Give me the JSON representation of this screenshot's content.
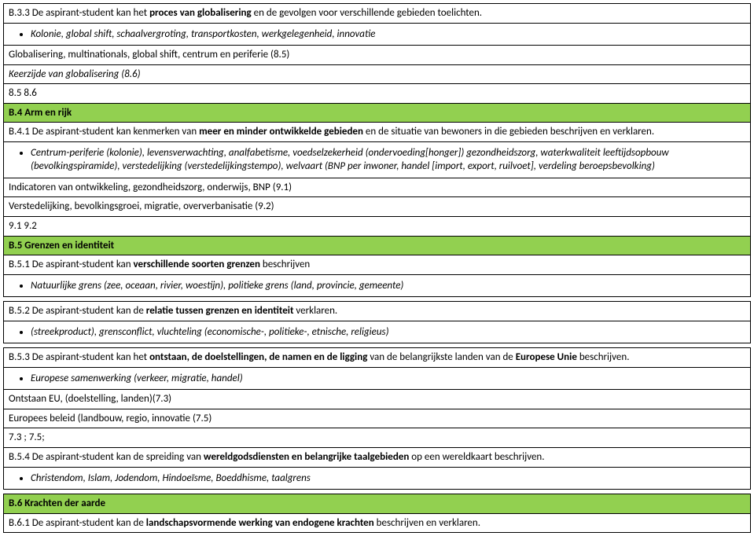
{
  "r": [
    {
      "pre": "B.3.3 De aspirant-student kan het ",
      "b": "proces van globalisering",
      "post": " en de gevolgen voor verschillende gebieden toelichten."
    },
    {
      "bullet": true,
      "i": true,
      "t": "Kolonie, global shift, schaalvergroting, transportkosten, werkgelegenheid, innovatie"
    },
    {
      "t": "Globalisering, multinationals, global shift, centrum en periferie (8.5)"
    },
    {
      "i": true,
      "t": "Keerzijde van globalisering (8.6)"
    },
    {
      "t": "8.5 8.6"
    },
    {
      "green": true,
      "b": "B.4 Arm en rijk"
    },
    {
      "pre": "B.4.1 De aspirant-student kan kenmerken van ",
      "b": "meer en minder ontwikkelde gebieden",
      "post": " en de situatie van bewoners in die gebieden beschrijven en verklaren."
    },
    {
      "bullet": true,
      "i": true,
      "t": "Centrum-periferie (kolonie), levensverwachting, analfabetisme, voedselzekerheid (ondervoeding[honger]) gezondheidszorg, waterkwaliteit leeftijdsopbouw (bevolkingspiramide), verstedelijking (verstedelijkingstempo), welvaart (BNP per inwoner, handel [import, export, ruilvoet], verdeling beroepsbevolking)"
    },
    {
      "t": "Indicatoren van ontwikkeling, gezondheidszorg, onderwijs, BNP (9.1)"
    },
    {
      "t": "Verstedelijking, bevolkingsgroei, migratie, oververbanisatie (9.2)"
    },
    {
      "t": "9.1  9.2"
    },
    {
      "green": true,
      "b": "B.5 Grenzen en identiteit"
    },
    {
      "pre": "B.5.1 De aspirant-student kan ",
      "b": "verschillende soorten grenzen",
      "post": " beschrijven"
    },
    {
      "bullet": true,
      "i": true,
      "t": "Natuurlijke grens (zee, oceaan, rivier, woestijn), politieke grens (land, provincie, gemeente)"
    },
    {
      "spacer": true
    },
    {
      "pre": "B.5.2 De aspirant-student kan de ",
      "b": "relatie tussen grenzen en identiteit",
      "post": " verklaren."
    },
    {
      "bullet": true,
      "i": true,
      "t": "(streekproduct), grensconflict, vluchteling (economische-, politieke-, etnische, religieus)"
    },
    {
      "spacer": true
    },
    {
      "pre": "B.5.3 De aspirant-student kan het ",
      "b": "ontstaan, de doelstellingen, de namen en de ligging",
      "post": " van de belangrijkste landen van de ",
      "b2": "Europese Unie",
      "post2": " beschrijven."
    },
    {
      "bullet": true,
      "i": true,
      "t": "Europese samenwerking (verkeer, migratie, handel)"
    },
    {
      "t": "Ontstaan EU, (doelstelling, landen)(7.3)"
    },
    {
      "t": "Europees beleid (landbouw, regio, innovatie (7.5)"
    },
    {
      "t": "7.3 ; 7.5;"
    },
    {
      "pre": "B.5.4 De aspirant-student kan de spreiding van ",
      "b": "wereldgodsdiensten en belangrijke taalgebieden",
      "post": " op een wereldkaart beschrijven."
    },
    {
      "bullet": true,
      "i": true,
      "t": "Christendom, Islam, Jodendom, Hindoeïsme, Boeddhisme, taalgrens"
    },
    {
      "spacer": true
    },
    {
      "green": true,
      "b": "B.6 Krachten der aarde"
    },
    {
      "pre": "B.6.1 De aspirant-student kan de ",
      "b": "landschapsvormende werking van endogene krachten",
      "post": " beschrijven en verklaren."
    }
  ]
}
